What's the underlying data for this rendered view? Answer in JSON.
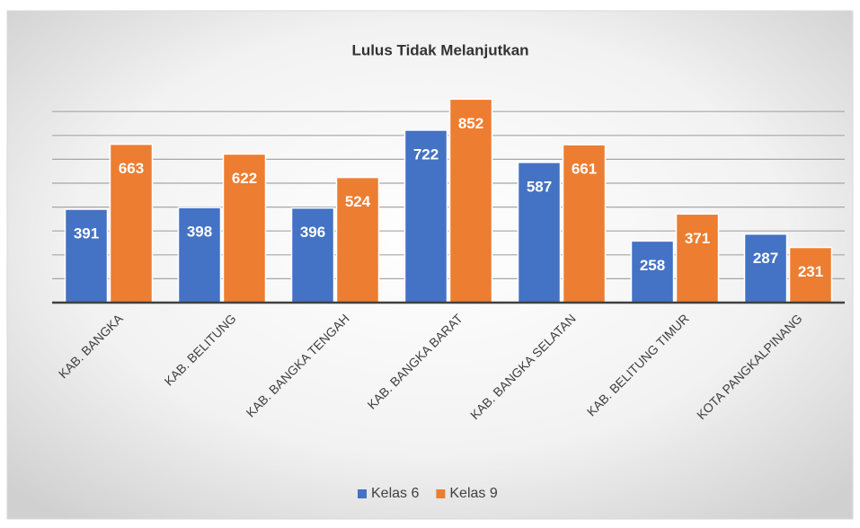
{
  "chart_data": {
    "type": "bar",
    "title": "Lulus Tidak Melanjutkan",
    "categories": [
      "KAB. BANGKA",
      "KAB. BELITUNG",
      "KAB. BANGKA TENGAH",
      "KAB. BANGKA BARAT",
      "KAB. BANGKA SELATAN",
      "KAB. BELITUNG TIMUR",
      "KOTA PANGKALPINANG"
    ],
    "series": [
      {
        "name": "Kelas 6",
        "color": "#4472c4",
        "values": [
          391,
          398,
          396,
          722,
          587,
          258,
          287
        ]
      },
      {
        "name": "Kelas 9",
        "color": "#ed7d31",
        "values": [
          663,
          622,
          524,
          852,
          661,
          371,
          231
        ]
      }
    ],
    "ylim": [
      0,
      900
    ],
    "yticks": [
      0,
      100,
      200,
      300,
      400,
      500,
      600,
      700,
      800
    ],
    "grid": true,
    "legend": "bottom"
  }
}
